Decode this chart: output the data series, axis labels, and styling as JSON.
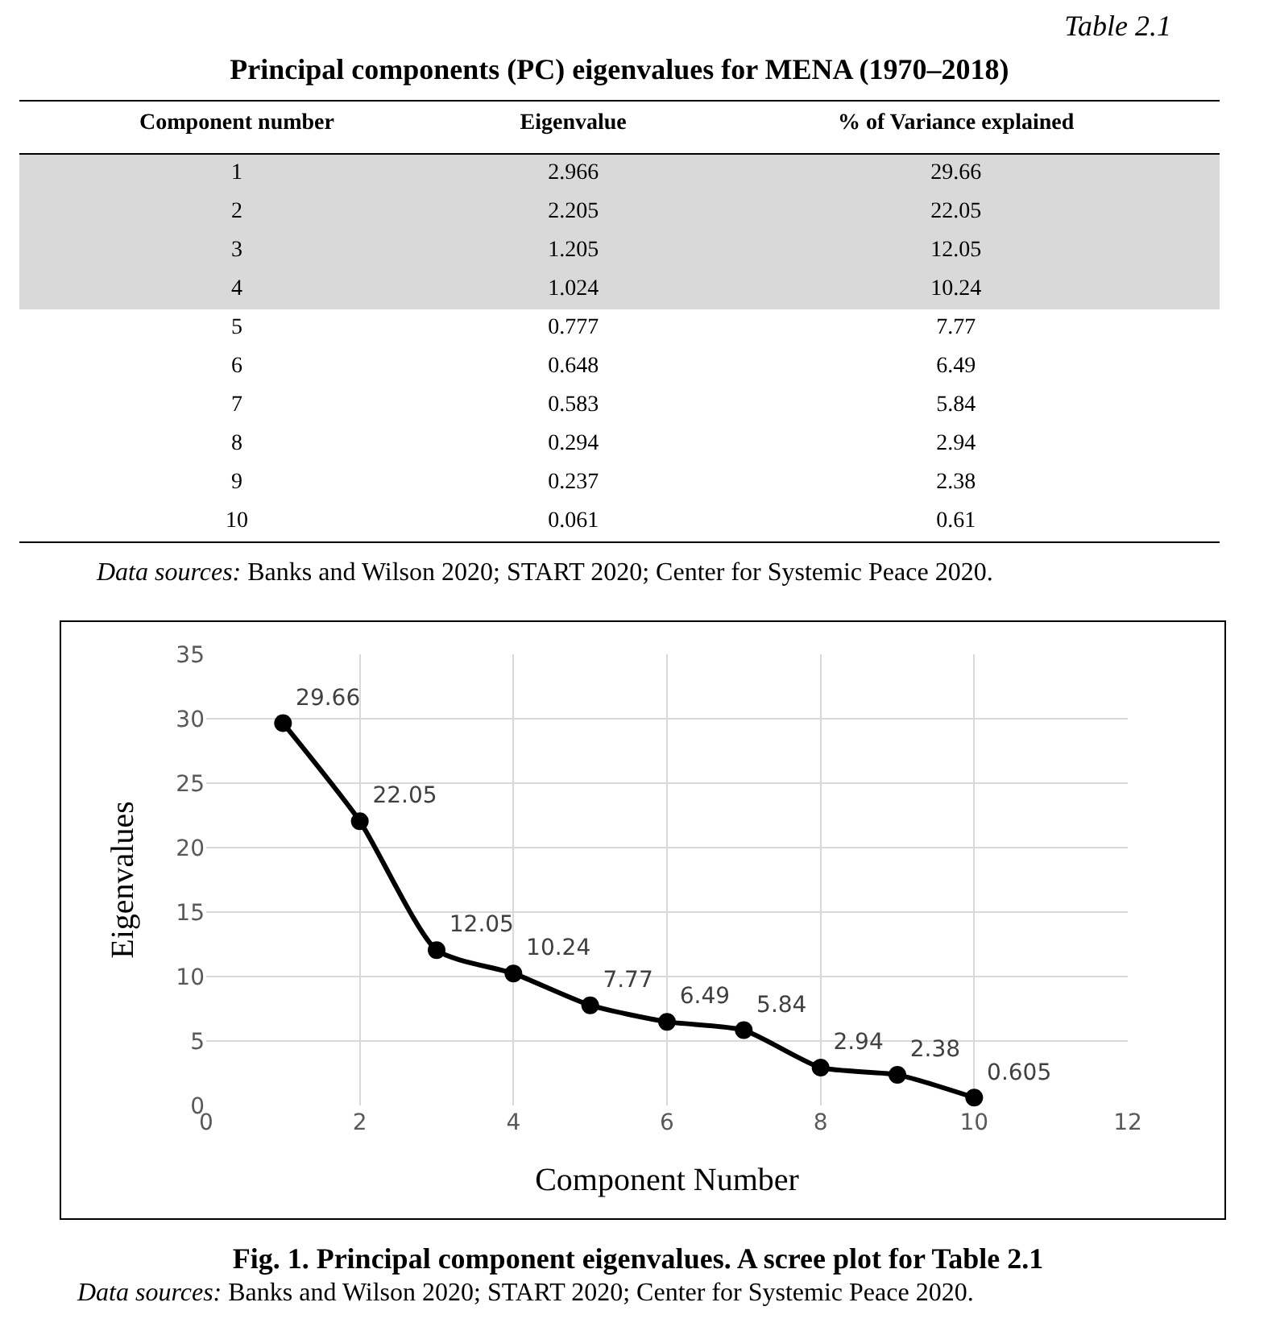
{
  "chart_data": [
    {
      "type": "heatmap",
      "subtitle": "Table 2.1",
      "title": "Principal components (PC) eigenvalues for MENA (1970–2018)",
      "ylabel": "Component number",
      "categories": [
        "Eigenvalue",
        "% of Variance explained"
      ],
      "y_categories": [
        "1",
        "2",
        "3",
        "4",
        "5",
        "6",
        "7",
        "8",
        "9",
        "10"
      ],
      "cells": [
        [
          2.966,
          29.66
        ],
        [
          2.205,
          22.05
        ],
        [
          1.205,
          12.05
        ],
        [
          1.024,
          10.24
        ],
        [
          0.777,
          7.77
        ],
        [
          0.648,
          6.49
        ],
        [
          0.583,
          5.84
        ],
        [
          0.294,
          2.94
        ],
        [
          0.237,
          2.38
        ],
        [
          0.061,
          0.61
        ]
      ],
      "cell_labels": [
        [
          "2.966",
          "29.66"
        ],
        [
          "2.205",
          "22.05"
        ],
        [
          "1.205",
          "12.05"
        ],
        [
          "1.024",
          "10.24"
        ],
        [
          "0.777",
          "7.77"
        ],
        [
          "0.648",
          "6.49"
        ],
        [
          "0.583",
          "5.84"
        ],
        [
          "0.294",
          "2.94"
        ],
        [
          "0.237",
          "2.38"
        ],
        [
          "0.061",
          "0.61"
        ]
      ],
      "bands": [
        {
          "axis": "y",
          "from": "1",
          "to": "4",
          "color": "#d9d9d9"
        }
      ],
      "annotations": [
        "Data sources: Banks and Wilson 2020; START 2020; Center for Systemic Peace 2020."
      ]
    },
    {
      "type": "line",
      "title": "Fig. 1. Principal component eigenvalues. A scree plot for Table 2.1",
      "xlabel": "Component Number",
      "ylabel": "Eigenvalues",
      "x": [
        1,
        2,
        3,
        4,
        5,
        6,
        7,
        8,
        9,
        10
      ],
      "series": [
        {
          "color": "#000000",
          "values": [
            29.66,
            22.05,
            12.05,
            10.24,
            7.77,
            6.49,
            5.84,
            2.94,
            2.38,
            0.605
          ]
        }
      ],
      "data_labels": true,
      "marker": "circle",
      "line_style": "solid",
      "grid": true,
      "xlim": [
        0,
        12
      ],
      "xticks": [
        0,
        2,
        4,
        6,
        8,
        10,
        12
      ],
      "ylim": [
        0,
        35
      ],
      "yticks": [
        0,
        5,
        10,
        15,
        20,
        25,
        30,
        35
      ],
      "annotations": [
        "Data sources: Banks and Wilson 2020; START 2020; Center for Systemic Peace 2020."
      ]
    }
  ]
}
